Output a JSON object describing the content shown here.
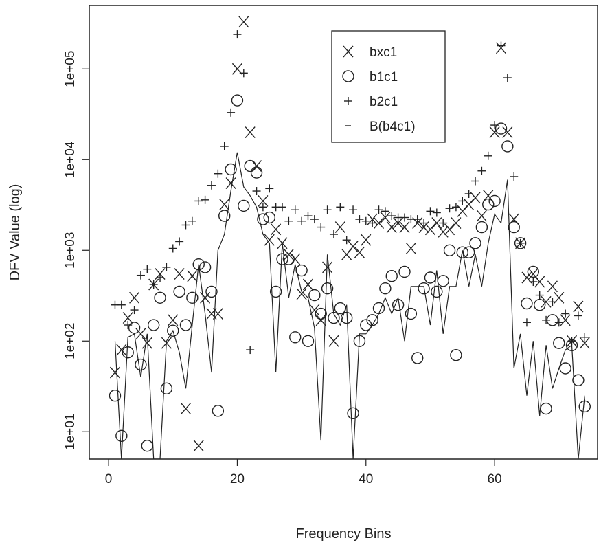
{
  "chart_data": {
    "type": "scatter",
    "xlabel": "Frequency Bins",
    "ylabel": "DFV Value (log)",
    "xlim": [
      -3,
      76
    ],
    "ylim": [
      5,
      500000
    ],
    "yscale": "log",
    "xticks": [
      0,
      20,
      40,
      60
    ],
    "xtick_labels": [
      "0",
      "20",
      "40",
      "60"
    ],
    "yticks": [
      10,
      100,
      1000,
      10000,
      100000
    ],
    "ytick_labels": [
      "1e+01",
      "1e+02",
      "1e+03",
      "1e+04",
      "1e+05"
    ],
    "legend_position": "top-right",
    "series": [
      {
        "name": "bxc1",
        "marker": "x",
        "points": [
          [
            1,
            45
          ],
          [
            2,
            80
          ],
          [
            3,
            180
          ],
          [
            4,
            300
          ],
          [
            5,
            120
          ],
          [
            6,
            95
          ],
          [
            7,
            420
          ],
          [
            8,
            550
          ],
          [
            9,
            95
          ],
          [
            10,
            170
          ],
          [
            11,
            550
          ],
          [
            12,
            18
          ],
          [
            13,
            520
          ],
          [
            14,
            7
          ],
          [
            15,
            300
          ],
          [
            16,
            200
          ],
          [
            17,
            200
          ],
          [
            18,
            3200
          ],
          [
            19,
            5500
          ],
          [
            20,
            100000
          ],
          [
            21,
            330000
          ],
          [
            22,
            20000
          ],
          [
            23,
            8500
          ],
          [
            24,
            3500
          ],
          [
            25,
            1300
          ],
          [
            26,
            1700
          ],
          [
            27,
            1200
          ],
          [
            28,
            900
          ],
          [
            29,
            800
          ],
          [
            30,
            330
          ],
          [
            31,
            420
          ],
          [
            32,
            220
          ],
          [
            33,
            170
          ],
          [
            34,
            650
          ],
          [
            35,
            100
          ],
          [
            36,
            1800
          ],
          [
            37,
            900
          ],
          [
            38,
            1100
          ],
          [
            39,
            950
          ],
          [
            40,
            1300
          ],
          [
            41,
            2200
          ],
          [
            42,
            2000
          ],
          [
            43,
            2300
          ],
          [
            44,
            1800
          ],
          [
            45,
            2000
          ],
          [
            46,
            1800
          ],
          [
            47,
            1050
          ],
          [
            48,
            2000
          ],
          [
            49,
            1800
          ],
          [
            50,
            1700
          ],
          [
            51,
            2000
          ],
          [
            52,
            1600
          ],
          [
            53,
            1700
          ],
          [
            54,
            2000
          ],
          [
            55,
            2700
          ],
          [
            56,
            3200
          ],
          [
            57,
            3800
          ],
          [
            58,
            2400
          ],
          [
            59,
            4000
          ],
          [
            60,
            20000
          ],
          [
            61,
            170000
          ],
          [
            62,
            20000
          ],
          [
            63,
            2200
          ],
          [
            64,
            1200
          ],
          [
            65,
            500
          ],
          [
            66,
            550
          ],
          [
            67,
            450
          ],
          [
            68,
            270
          ],
          [
            69,
            400
          ],
          [
            70,
            300
          ],
          [
            71,
            170
          ],
          [
            72,
            100
          ],
          [
            73,
            240
          ],
          [
            74,
            95
          ]
        ]
      },
      {
        "name": "b1c1",
        "marker": "o",
        "points": [
          [
            1,
            25
          ],
          [
            2,
            9
          ],
          [
            3,
            75
          ],
          [
            4,
            140
          ],
          [
            5,
            55
          ],
          [
            6,
            7
          ],
          [
            7,
            150
          ],
          [
            8,
            300
          ],
          [
            9,
            30
          ],
          [
            10,
            130
          ],
          [
            11,
            350
          ],
          [
            12,
            150
          ],
          [
            13,
            300
          ],
          [
            14,
            700
          ],
          [
            15,
            650
          ],
          [
            16,
            350
          ],
          [
            17,
            17
          ],
          [
            18,
            2400
          ],
          [
            19,
            7800
          ],
          [
            20,
            45000
          ],
          [
            21,
            3100
          ],
          [
            22,
            8500
          ],
          [
            23,
            7200
          ],
          [
            24,
            2200
          ],
          [
            25,
            2300
          ],
          [
            26,
            350
          ],
          [
            27,
            800
          ],
          [
            28,
            800
          ],
          [
            29,
            110
          ],
          [
            30,
            600
          ],
          [
            31,
            100
          ],
          [
            32,
            320
          ],
          [
            33,
            200
          ],
          [
            34,
            380
          ],
          [
            35,
            180
          ],
          [
            36,
            230
          ],
          [
            37,
            180
          ],
          [
            38,
            16
          ],
          [
            39,
            100
          ],
          [
            40,
            150
          ],
          [
            41,
            170
          ],
          [
            42,
            230
          ],
          [
            43,
            380
          ],
          [
            44,
            520
          ],
          [
            45,
            250
          ],
          [
            46,
            580
          ],
          [
            47,
            200
          ],
          [
            48,
            65
          ],
          [
            49,
            380
          ],
          [
            50,
            500
          ],
          [
            51,
            350
          ],
          [
            52,
            460
          ],
          [
            53,
            1000
          ],
          [
            54,
            70
          ],
          [
            55,
            950
          ],
          [
            56,
            950
          ],
          [
            57,
            1200
          ],
          [
            58,
            1800
          ],
          [
            59,
            3200
          ],
          [
            60,
            3500
          ],
          [
            61,
            22000
          ],
          [
            62,
            14000
          ],
          [
            63,
            1800
          ],
          [
            64,
            1200
          ],
          [
            65,
            260
          ],
          [
            66,
            580
          ],
          [
            67,
            250
          ],
          [
            68,
            18
          ],
          [
            69,
            170
          ],
          [
            70,
            95
          ],
          [
            71,
            50
          ],
          [
            72,
            90
          ],
          [
            73,
            37
          ],
          [
            74,
            19
          ]
        ]
      },
      {
        "name": "b2c1",
        "marker": "+",
        "points": [
          [
            1,
            250
          ],
          [
            2,
            250
          ],
          [
            3,
            150
          ],
          [
            4,
            220
          ],
          [
            5,
            530
          ],
          [
            6,
            620
          ],
          [
            7,
            420
          ],
          [
            8,
            500
          ],
          [
            9,
            650
          ],
          [
            10,
            1050
          ],
          [
            11,
            1250
          ],
          [
            12,
            1900
          ],
          [
            13,
            2100
          ],
          [
            14,
            3500
          ],
          [
            15,
            3600
          ],
          [
            16,
            5200
          ],
          [
            17,
            7000
          ],
          [
            18,
            14000
          ],
          [
            19,
            33000
          ],
          [
            20,
            240000
          ],
          [
            21,
            90000
          ],
          [
            22,
            80
          ],
          [
            23,
            4500
          ],
          [
            24,
            3000
          ],
          [
            25,
            4800
          ],
          [
            26,
            3000
          ],
          [
            27,
            3000
          ],
          [
            28,
            2100
          ],
          [
            29,
            2800
          ],
          [
            30,
            2100
          ],
          [
            31,
            2400
          ],
          [
            32,
            2200
          ],
          [
            33,
            1800
          ],
          [
            34,
            2800
          ],
          [
            35,
            1500
          ],
          [
            36,
            3000
          ],
          [
            37,
            1300
          ],
          [
            38,
            2800
          ],
          [
            39,
            2200
          ],
          [
            40,
            2100
          ],
          [
            41,
            2000
          ],
          [
            42,
            2800
          ],
          [
            43,
            2700
          ],
          [
            44,
            2400
          ],
          [
            45,
            2300
          ],
          [
            46,
            2300
          ],
          [
            47,
            2200
          ],
          [
            48,
            2200
          ],
          [
            49,
            2000
          ],
          [
            50,
            2700
          ],
          [
            51,
            2600
          ],
          [
            52,
            2000
          ],
          [
            53,
            2900
          ],
          [
            54,
            3000
          ],
          [
            55,
            3500
          ],
          [
            56,
            4200
          ],
          [
            57,
            5800
          ],
          [
            58,
            7500
          ],
          [
            59,
            11000
          ],
          [
            60,
            24000
          ],
          [
            61,
            180000
          ],
          [
            62,
            80000
          ],
          [
            63,
            6500
          ],
          [
            64,
            1200
          ],
          [
            65,
            160
          ],
          [
            66,
            450
          ],
          [
            67,
            320
          ],
          [
            68,
            170
          ],
          [
            69,
            270
          ],
          [
            70,
            160
          ],
          [
            71,
            200
          ],
          [
            72,
            100
          ],
          [
            73,
            190
          ],
          [
            74,
            110
          ]
        ]
      },
      {
        "name": "B(b4c1)",
        "marker": "line",
        "points": [
          [
            1,
            100
          ],
          [
            2,
            5
          ],
          [
            3,
            110
          ],
          [
            4,
            120
          ],
          [
            5,
            40
          ],
          [
            6,
            120
          ],
          [
            7,
            5
          ],
          [
            8,
            5
          ],
          [
            9,
            100
          ],
          [
            10,
            130
          ],
          [
            11,
            75
          ],
          [
            12,
            30
          ],
          [
            13,
            150
          ],
          [
            14,
            700
          ],
          [
            15,
            200
          ],
          [
            16,
            45
          ],
          [
            17,
            1000
          ],
          [
            18,
            1500
          ],
          [
            19,
            4500
          ],
          [
            20,
            12000
          ],
          [
            21,
            5000
          ],
          [
            22,
            4000
          ],
          [
            23,
            3000
          ],
          [
            24,
            1500
          ],
          [
            25,
            1200
          ],
          [
            26,
            45
          ],
          [
            27,
            1200
          ],
          [
            28,
            300
          ],
          [
            29,
            700
          ],
          [
            30,
            350
          ],
          [
            31,
            300
          ],
          [
            32,
            140
          ],
          [
            33,
            8
          ],
          [
            34,
            900
          ],
          [
            35,
            200
          ],
          [
            36,
            150
          ],
          [
            37,
            250
          ],
          [
            38,
            5
          ],
          [
            39,
            120
          ],
          [
            40,
            120
          ],
          [
            41,
            150
          ],
          [
            42,
            200
          ],
          [
            43,
            300
          ],
          [
            44,
            200
          ],
          [
            45,
            300
          ],
          [
            46,
            100
          ],
          [
            47,
            400
          ],
          [
            48,
            400
          ],
          [
            49,
            400
          ],
          [
            50,
            150
          ],
          [
            51,
            600
          ],
          [
            52,
            120
          ],
          [
            53,
            400
          ],
          [
            54,
            400
          ],
          [
            55,
            1000
          ],
          [
            56,
            400
          ],
          [
            57,
            900
          ],
          [
            58,
            400
          ],
          [
            59,
            1200
          ],
          [
            60,
            2500
          ],
          [
            61,
            2000
          ],
          [
            62,
            6000
          ],
          [
            63,
            50
          ],
          [
            64,
            120
          ],
          [
            65,
            25
          ],
          [
            66,
            100
          ],
          [
            67,
            15
          ],
          [
            68,
            90
          ],
          [
            69,
            30
          ],
          [
            70,
            50
          ],
          [
            71,
            80
          ],
          [
            72,
            90
          ],
          [
            73,
            5
          ],
          [
            74,
            25
          ]
        ]
      }
    ]
  }
}
